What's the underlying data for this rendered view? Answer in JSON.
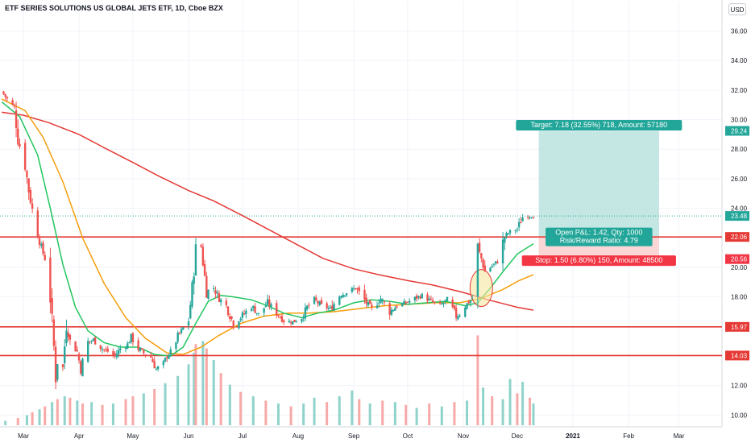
{
  "header": {
    "title": "ETF SERIES SOLUTIONS US GLOBAL JETS ETF, 1D, Cboe BZX",
    "currency_button": "USD"
  },
  "colors": {
    "up": "#26a69a",
    "down": "#ef5350",
    "up_volume": "#8fd3ca",
    "down_volume": "#f7a9a7",
    "sma_short": "#22c55e",
    "sma_mid": "#f59e0b",
    "sma_long": "#e53935",
    "hline": "#e53935",
    "target_zone": "#b2dfdb",
    "stop_zone": "#f8c9c8",
    "target_label": "#22a699",
    "stop_label": "#f23645",
    "highlight_circle": "#f5e6a0",
    "grid": "#f0f3fa"
  },
  "chart_data": {
    "type": "candlestick",
    "title": "ETF SERIES SOLUTIONS US GLOBAL JETS ETF, 1D, Cboe BZX",
    "y_axis": {
      "ticks": [
        "36.00",
        "34.00",
        "32.00",
        "30.00",
        "28.00",
        "26.00",
        "24.00",
        "22.00",
        "20.00",
        "18.00",
        "16.00",
        "14.00",
        "12.00",
        "10.00"
      ],
      "range": [
        9.2,
        36.9
      ]
    },
    "x_axis": {
      "ticks": [
        "Mar",
        "Apr",
        "May",
        "Jun",
        "Jul",
        "Aug",
        "Sep",
        "Oct",
        "Nov",
        "Dec",
        "2021",
        "Feb",
        "Mar"
      ],
      "bold_ticks": [
        "2021"
      ],
      "range": [
        "2020-02-17",
        "2021-03-25"
      ]
    },
    "price_points": [
      [
        "2020-02-18",
        31.9
      ],
      [
        "2020-02-21",
        31.4
      ],
      [
        "2020-02-25",
        30.8
      ],
      [
        "2020-02-27",
        28.7
      ],
      [
        "2020-03-02",
        26.9
      ],
      [
        "2020-03-04",
        25.2
      ],
      [
        "2020-03-06",
        23.9
      ],
      [
        "2020-03-09",
        22.3
      ],
      [
        "2020-03-11",
        21.3
      ],
      [
        "2020-03-13",
        20.6
      ],
      [
        "2020-03-16",
        17.9
      ],
      [
        "2020-03-18",
        14.6
      ],
      [
        "2020-03-19",
        12.5
      ],
      [
        "2020-03-20",
        13.6
      ],
      [
        "2020-03-23",
        13.2
      ],
      [
        "2020-03-25",
        16.2
      ],
      [
        "2020-03-27",
        15.0
      ],
      [
        "2020-03-31",
        14.3
      ],
      [
        "2020-04-02",
        13.1
      ],
      [
        "2020-04-06",
        14.9
      ],
      [
        "2020-04-09",
        15.1
      ],
      [
        "2020-04-14",
        14.5
      ],
      [
        "2020-04-17",
        14.3
      ],
      [
        "2020-04-21",
        14.0
      ],
      [
        "2020-04-24",
        14.5
      ],
      [
        "2020-04-28",
        14.8
      ],
      [
        "2020-04-30",
        15.3
      ],
      [
        "2020-05-04",
        14.5
      ],
      [
        "2020-05-07",
        14.2
      ],
      [
        "2020-05-11",
        13.9
      ],
      [
        "2020-05-14",
        13.1
      ],
      [
        "2020-05-18",
        13.5
      ],
      [
        "2020-05-20",
        14.0
      ],
      [
        "2020-05-22",
        14.3
      ],
      [
        "2020-05-26",
        15.3
      ],
      [
        "2020-05-28",
        15.7
      ],
      [
        "2020-06-01",
        16.4
      ],
      [
        "2020-06-03",
        18.6
      ],
      [
        "2020-06-05",
        21.2
      ],
      [
        "2020-06-08",
        21.4
      ],
      [
        "2020-06-09",
        20.3
      ],
      [
        "2020-06-11",
        18.4
      ],
      [
        "2020-06-15",
        18.6
      ],
      [
        "2020-06-18",
        17.9
      ],
      [
        "2020-06-22",
        17.4
      ],
      [
        "2020-06-26",
        16.2
      ],
      [
        "2020-06-30",
        16.6
      ],
      [
        "2020-07-06",
        17.4
      ],
      [
        "2020-07-10",
        16.8
      ],
      [
        "2020-07-15",
        17.6
      ],
      [
        "2020-07-20",
        16.9
      ],
      [
        "2020-07-24",
        16.4
      ],
      [
        "2020-07-29",
        16.3
      ],
      [
        "2020-08-03",
        16.6
      ],
      [
        "2020-08-06",
        17.3
      ],
      [
        "2020-08-10",
        17.8
      ],
      [
        "2020-08-14",
        17.4
      ],
      [
        "2020-08-19",
        17.2
      ],
      [
        "2020-08-24",
        18.1
      ],
      [
        "2020-08-28",
        18.3
      ],
      [
        "2020-09-02",
        18.6
      ],
      [
        "2020-09-08",
        17.6
      ],
      [
        "2020-09-11",
        17.2
      ],
      [
        "2020-09-16",
        17.9
      ],
      [
        "2020-09-21",
        17.0
      ],
      [
        "2020-09-25",
        17.4
      ],
      [
        "2020-09-30",
        17.6
      ],
      [
        "2020-10-05",
        17.9
      ],
      [
        "2020-10-09",
        18.1
      ],
      [
        "2020-10-14",
        17.7
      ],
      [
        "2020-10-19",
        17.4
      ],
      [
        "2020-10-23",
        17.8
      ],
      [
        "2020-10-28",
        16.7
      ],
      [
        "2020-10-30",
        16.8
      ],
      [
        "2020-11-02",
        17.4
      ],
      [
        "2020-11-06",
        17.9
      ],
      [
        "2020-11-09",
        21.3
      ],
      [
        "2020-11-11",
        20.6
      ],
      [
        "2020-11-13",
        19.7
      ],
      [
        "2020-11-17",
        20.1
      ],
      [
        "2020-11-20",
        20.4
      ],
      [
        "2020-11-24",
        22.1
      ],
      [
        "2020-11-27",
        22.4
      ],
      [
        "2020-12-01",
        22.6
      ],
      [
        "2020-12-04",
        23.4
      ],
      [
        "2020-12-08",
        23.5
      ],
      [
        "2020-12-10",
        23.48
      ]
    ],
    "sma_short_points": [
      [
        "2020-02-18",
        31.2
      ],
      [
        "2020-02-28",
        30.2
      ],
      [
        "2020-03-09",
        27.6
      ],
      [
        "2020-03-16",
        24.0
      ],
      [
        "2020-03-23",
        20.2
      ],
      [
        "2020-03-30",
        17.3
      ],
      [
        "2020-04-06",
        15.7
      ],
      [
        "2020-04-15",
        14.9
      ],
      [
        "2020-04-24",
        14.6
      ],
      [
        "2020-05-04",
        14.6
      ],
      [
        "2020-05-13",
        14.1
      ],
      [
        "2020-05-22",
        14.0
      ],
      [
        "2020-05-29",
        14.6
      ],
      [
        "2020-06-05",
        16.2
      ],
      [
        "2020-06-12",
        17.7
      ],
      [
        "2020-06-19",
        18.1
      ],
      [
        "2020-06-26",
        18.0
      ],
      [
        "2020-07-06",
        17.8
      ],
      [
        "2020-07-15",
        17.4
      ],
      [
        "2020-07-24",
        16.9
      ],
      [
        "2020-08-03",
        16.6
      ],
      [
        "2020-08-12",
        16.9
      ],
      [
        "2020-08-21",
        17.1
      ],
      [
        "2020-09-01",
        17.6
      ],
      [
        "2020-09-11",
        17.8
      ],
      [
        "2020-09-21",
        17.7
      ],
      [
        "2020-10-01",
        17.5
      ],
      [
        "2020-10-12",
        17.6
      ],
      [
        "2020-10-22",
        17.7
      ],
      [
        "2020-11-02",
        17.4
      ],
      [
        "2020-11-09",
        17.6
      ],
      [
        "2020-11-16",
        18.6
      ],
      [
        "2020-11-23",
        19.7
      ],
      [
        "2020-12-01",
        20.9
      ],
      [
        "2020-12-10",
        21.6
      ]
    ],
    "sma_mid_points": [
      [
        "2020-02-18",
        31.4
      ],
      [
        "2020-03-02",
        30.6
      ],
      [
        "2020-03-12",
        28.8
      ],
      [
        "2020-03-23",
        25.8
      ],
      [
        "2020-04-03",
        22.0
      ],
      [
        "2020-04-15",
        18.9
      ],
      [
        "2020-04-27",
        16.6
      ],
      [
        "2020-05-08",
        15.2
      ],
      [
        "2020-05-20",
        14.2
      ],
      [
        "2020-05-29",
        14.1
      ],
      [
        "2020-06-08",
        14.6
      ],
      [
        "2020-06-18",
        15.4
      ],
      [
        "2020-06-30",
        16.2
      ],
      [
        "2020-07-13",
        16.7
      ],
      [
        "2020-07-27",
        16.9
      ],
      [
        "2020-08-07",
        16.9
      ],
      [
        "2020-08-21",
        17.0
      ],
      [
        "2020-09-04",
        17.2
      ],
      [
        "2020-09-18",
        17.4
      ],
      [
        "2020-10-02",
        17.5
      ],
      [
        "2020-10-16",
        17.6
      ],
      [
        "2020-10-30",
        17.6
      ],
      [
        "2020-11-11",
        17.9
      ],
      [
        "2020-11-23",
        18.5
      ],
      [
        "2020-12-02",
        19.1
      ],
      [
        "2020-12-10",
        19.5
      ]
    ],
    "sma_long_points": [
      [
        "2020-02-18",
        30.5
      ],
      [
        "2020-03-01",
        30.3
      ],
      [
        "2020-03-15",
        29.8
      ],
      [
        "2020-04-01",
        29.0
      ],
      [
        "2020-04-15",
        28.1
      ],
      [
        "2020-05-01",
        27.1
      ],
      [
        "2020-05-15",
        26.2
      ],
      [
        "2020-06-01",
        25.2
      ],
      [
        "2020-06-15",
        24.5
      ],
      [
        "2020-07-01",
        23.5
      ],
      [
        "2020-07-15",
        22.6
      ],
      [
        "2020-08-01",
        21.5
      ],
      [
        "2020-08-15",
        20.6
      ],
      [
        "2020-09-01",
        19.9
      ],
      [
        "2020-09-15",
        19.5
      ],
      [
        "2020-10-01",
        19.1
      ],
      [
        "2020-10-15",
        18.8
      ],
      [
        "2020-11-01",
        18.3
      ],
      [
        "2020-11-15",
        17.8
      ],
      [
        "2020-12-01",
        17.3
      ],
      [
        "2020-12-10",
        17.1
      ]
    ],
    "volume_points": [
      [
        "2020-02-20",
        0.3,
        "up"
      ],
      [
        "2020-02-27",
        0.5,
        "down"
      ],
      [
        "2020-03-03",
        0.7,
        "up"
      ],
      [
        "2020-03-06",
        0.9,
        "down"
      ],
      [
        "2020-03-10",
        1.1,
        "up"
      ],
      [
        "2020-03-13",
        1.3,
        "down"
      ],
      [
        "2020-03-17",
        1.6,
        "up"
      ],
      [
        "2020-03-20",
        1.8,
        "down"
      ],
      [
        "2020-03-24",
        2.0,
        "up"
      ],
      [
        "2020-03-27",
        1.9,
        "down"
      ],
      [
        "2020-03-31",
        1.7,
        "up"
      ],
      [
        "2020-04-03",
        1.5,
        "down"
      ],
      [
        "2020-04-08",
        1.6,
        "up"
      ],
      [
        "2020-04-14",
        1.4,
        "down"
      ],
      [
        "2020-04-20",
        1.5,
        "up"
      ],
      [
        "2020-04-27",
        1.8,
        "down"
      ],
      [
        "2020-05-01",
        2.0,
        "down"
      ],
      [
        "2020-05-07",
        2.2,
        "up"
      ],
      [
        "2020-05-13",
        2.5,
        "down"
      ],
      [
        "2020-05-19",
        2.9,
        "up"
      ],
      [
        "2020-05-26",
        3.4,
        "up"
      ],
      [
        "2020-06-01",
        4.2,
        "up"
      ],
      [
        "2020-06-04",
        5.0,
        "up"
      ],
      [
        "2020-06-05",
        5.6,
        "down"
      ],
      [
        "2020-06-09",
        5.8,
        "up"
      ],
      [
        "2020-06-11",
        5.3,
        "down"
      ],
      [
        "2020-06-15",
        4.5,
        "up"
      ],
      [
        "2020-06-19",
        3.6,
        "down"
      ],
      [
        "2020-06-24",
        2.8,
        "up"
      ],
      [
        "2020-06-30",
        2.3,
        "down"
      ],
      [
        "2020-07-07",
        2.0,
        "up"
      ],
      [
        "2020-07-14",
        1.7,
        "down"
      ],
      [
        "2020-07-21",
        1.5,
        "up"
      ],
      [
        "2020-07-28",
        1.3,
        "down"
      ],
      [
        "2020-08-04",
        1.5,
        "up"
      ],
      [
        "2020-08-10",
        1.9,
        "up"
      ],
      [
        "2020-08-17",
        1.6,
        "down"
      ],
      [
        "2020-08-24",
        2.0,
        "up"
      ],
      [
        "2020-08-31",
        2.4,
        "up"
      ],
      [
        "2020-09-04",
        1.8,
        "down"
      ],
      [
        "2020-09-10",
        1.5,
        "up"
      ],
      [
        "2020-09-17",
        1.7,
        "down"
      ],
      [
        "2020-09-24",
        1.6,
        "up"
      ],
      [
        "2020-09-30",
        1.4,
        "down"
      ],
      [
        "2020-10-06",
        1.2,
        "up"
      ],
      [
        "2020-10-13",
        1.5,
        "down"
      ],
      [
        "2020-10-20",
        1.3,
        "up"
      ],
      [
        "2020-10-27",
        1.6,
        "down"
      ],
      [
        "2020-11-03",
        1.7,
        "up"
      ],
      [
        "2020-11-09",
        6.2,
        "down"
      ],
      [
        "2020-11-12",
        2.6,
        "up"
      ],
      [
        "2020-11-17",
        2.0,
        "down"
      ],
      [
        "2020-11-23",
        1.8,
        "up"
      ],
      [
        "2020-11-27",
        3.2,
        "up"
      ],
      [
        "2020-12-01",
        2.2,
        "down"
      ],
      [
        "2020-12-04",
        3.0,
        "up"
      ],
      [
        "2020-12-08",
        1.9,
        "down"
      ],
      [
        "2020-12-10",
        1.5,
        "up"
      ]
    ],
    "horizontal_lines": [
      22.06,
      15.97,
      14.03
    ],
    "price_labels": [
      {
        "value": 29.24,
        "text": "29.24",
        "kind": "target"
      },
      {
        "value": 23.48,
        "text": "23.48",
        "kind": "last"
      },
      {
        "value": 22.06,
        "text": "22.06",
        "kind": "line"
      },
      {
        "value": 20.56,
        "text": "20.56",
        "kind": "stop"
      },
      {
        "value": 15.97,
        "text": "15.97",
        "kind": "line"
      },
      {
        "value": 14.03,
        "text": "14.03",
        "kind": "line"
      }
    ],
    "position": {
      "entry": 22.06,
      "target": 29.24,
      "stop": 20.56,
      "start_date": "2020-12-13",
      "end_date": "2021-02-18",
      "target_label": "Target: 7.18 (32.55%) 718, Amount: 57180",
      "pnl_label_line1": "Open P&L: 1.42, Qty: 1000",
      "pnl_label_line2": "Risk/Reward Ratio: 4.79",
      "stop_label": "Stop: 1.50 (6.80%) 150, Amount: 48500"
    },
    "highlight": {
      "center_date": "2020-11-11",
      "center_value": 18.6
    }
  }
}
